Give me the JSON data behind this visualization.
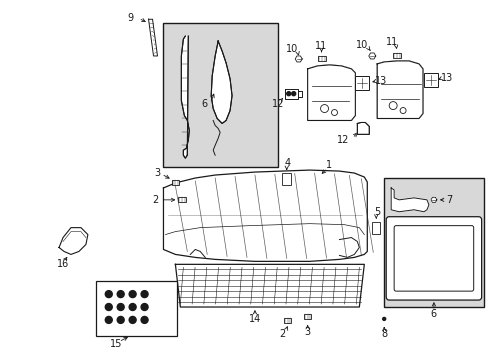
{
  "bg_color": "#ffffff",
  "line_color": "#1a1a1a",
  "fig_width": 4.89,
  "fig_height": 3.6,
  "dpi": 100,
  "gray_fill": "#d8d8d8"
}
